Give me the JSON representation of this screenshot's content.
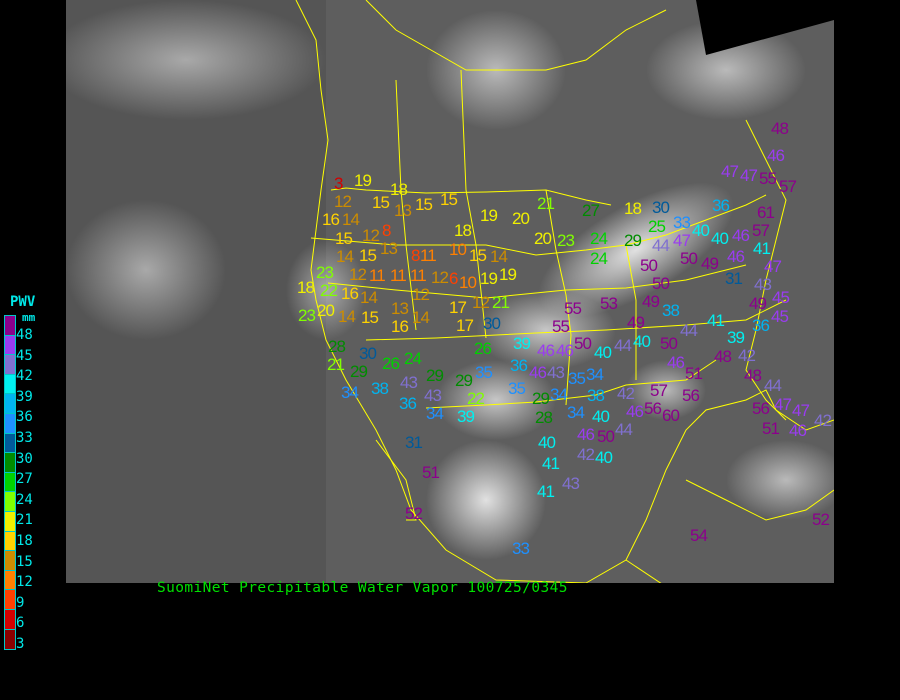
{
  "title": "SuomiNet Precipitable Water Vapor 100725/0345",
  "legend": {
    "title": "PWV",
    "unit": "mm",
    "labels": [
      "48",
      "45",
      "42",
      "39",
      "36",
      "33",
      "30",
      "27",
      "24",
      "21",
      "18",
      "15",
      "12",
      "9",
      "6",
      "3"
    ],
    "colors": [
      "#8c008c",
      "#9a3cf0",
      "#8070d0",
      "#00f0f0",
      "#00b4f0",
      "#1e90ff",
      "#005a9a",
      "#008c00",
      "#00d200",
      "#80ff00",
      "#f0f000",
      "#ffd200",
      "#cc8c00",
      "#ff8000",
      "#ff4000",
      "#d20000",
      "#8c0000"
    ]
  },
  "map": {
    "background": "#5a5a5a",
    "boundary_color": "#ffff00",
    "stations": [
      3,
      19,
      12,
      18,
      16,
      14,
      15,
      13,
      15,
      15,
      19,
      20,
      18,
      15,
      12,
      15,
      13,
      8,
      10,
      8,
      11,
      15,
      14,
      14,
      23,
      12,
      11,
      11,
      11,
      12,
      6,
      19,
      10,
      19,
      18,
      22,
      16,
      20,
      14,
      12,
      13,
      12,
      21,
      23,
      14,
      15,
      16,
      14,
      17,
      17,
      30,
      28,
      21,
      30,
      26,
      24,
      29,
      26,
      39,
      46,
      34,
      38,
      43,
      29,
      29,
      35,
      36,
      46,
      43,
      35,
      43,
      36,
      34,
      22,
      39,
      35,
      29,
      28,
      31,
      51,
      52,
      40,
      41,
      43,
      41,
      33,
      54,
      52,
      21,
      27,
      18,
      30,
      36,
      47,
      61,
      57,
      25,
      33,
      20,
      23,
      24,
      29,
      44,
      47,
      40,
      40,
      46,
      50,
      46,
      41,
      24,
      50,
      49,
      47,
      43,
      50,
      31,
      49,
      49,
      45,
      45,
      55,
      53,
      38,
      55,
      49,
      41,
      36,
      40,
      44,
      39,
      50,
      46,
      40,
      44,
      50,
      48,
      42,
      46,
      51,
      48,
      44,
      47,
      47,
      34,
      34,
      42,
      38,
      57,
      56,
      34,
      40,
      46,
      56,
      60,
      56,
      46,
      44,
      51,
      46,
      50,
      42,
      40,
      42,
      48,
      46,
      55,
      57,
      47
    ]
  }
}
